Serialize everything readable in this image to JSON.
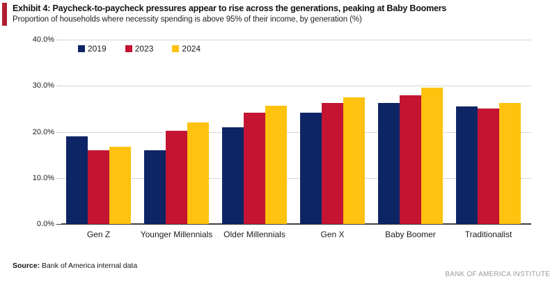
{
  "header": {
    "exhibit_title": "Exhibit 4: Paycheck-to-paycheck pressures appear to rise across the generations, peaking at Baby Boomers",
    "subtitle": "Proportion of households where necessity spending is above 95% of their income, by generation (%)"
  },
  "chart_data": {
    "type": "bar",
    "categories": [
      "Gen Z",
      "Younger Millennials",
      "Older Millennials",
      "Gen X",
      "Baby Boomer",
      "Traditionalist"
    ],
    "series": [
      {
        "name": "2019",
        "color": "#0E2565",
        "values": [
          19.0,
          16.0,
          21.0,
          24.1,
          26.3,
          25.5
        ]
      },
      {
        "name": "2023",
        "color": "#C41432",
        "values": [
          16.0,
          20.3,
          24.2,
          26.3,
          28.0,
          25.0
        ]
      },
      {
        "name": "2024",
        "color": "#FFC20E",
        "values": [
          16.7,
          22.0,
          25.6,
          27.4,
          29.6,
          26.2
        ]
      }
    ],
    "title": "",
    "xlabel": "",
    "ylabel": "",
    "ylim": [
      0,
      40
    ],
    "y_tick_step": 10,
    "y_tick_labels": [
      "0.0%",
      "10.0%",
      "20.0%",
      "30.0%",
      "40.0%"
    ],
    "grid": true,
    "legend_position": "top-left-inside"
  },
  "source": {
    "label": "Source:",
    "text": " Bank of America internal data"
  },
  "footer": {
    "brand": "BANK OF AMERICA INSTITUTE"
  },
  "colors": {
    "accent_bar": "#B01F2F",
    "gridline": "#D6D6D6",
    "axis_line": "#3F3F3F",
    "footer_text": "#9B9B9B"
  }
}
